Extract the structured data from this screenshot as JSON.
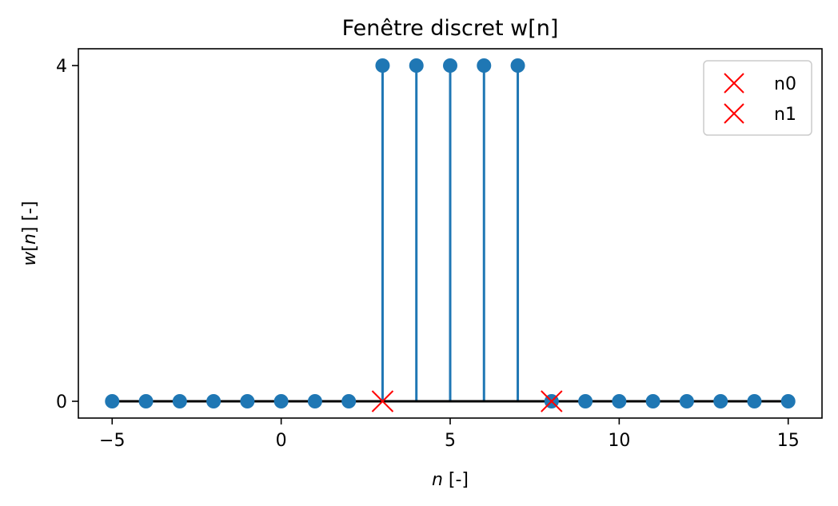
{
  "chart_data": {
    "type": "stem",
    "title": "Fenêtre discret w[n]",
    "xlabel": "n [-]",
    "ylabel": "w[n] [-]",
    "xlim": [
      -6,
      16
    ],
    "ylim": [
      -0.2,
      4.2
    ],
    "xticks": [
      -5,
      0,
      5,
      10,
      15
    ],
    "xtick_labels": [
      "−5",
      "0",
      "5",
      "10",
      "15"
    ],
    "yticks": [
      0,
      4
    ],
    "ytick_labels": [
      "0",
      "4"
    ],
    "grid": false,
    "legend_position": "top-right",
    "stem": {
      "n": [
        -5,
        -4,
        -3,
        -2,
        -1,
        0,
        1,
        2,
        3,
        4,
        5,
        6,
        7,
        8,
        9,
        10,
        11,
        12,
        13,
        14,
        15
      ],
      "values": [
        0,
        0,
        0,
        0,
        0,
        0,
        0,
        0,
        4,
        4,
        4,
        4,
        4,
        0,
        0,
        0,
        0,
        0,
        0,
        0,
        0
      ],
      "color": "#1f77b4",
      "baseline_color": "#000000"
    },
    "markers": [
      {
        "name": "n0",
        "x": 3,
        "y": 0,
        "color": "#ff0000",
        "marker": "x"
      },
      {
        "name": "n1",
        "x": 8,
        "y": 0,
        "color": "#ff0000",
        "marker": "x"
      }
    ]
  }
}
